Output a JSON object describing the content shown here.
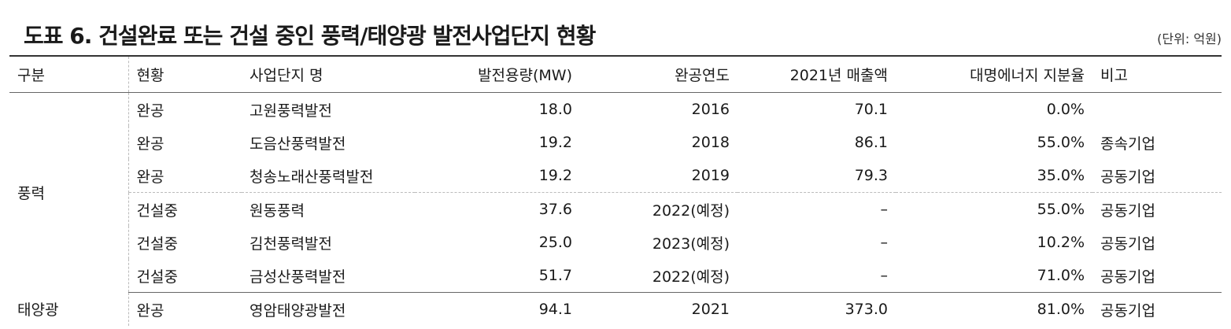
{
  "title": "도표 6. 건설완료 또는 건설 중인 풍력/태양광 발전사업단지 현황",
  "unit": "(단위: 억원)",
  "headers": {
    "category": "구분",
    "status": "현황",
    "name": "사업단지 명",
    "capacity": "발전용량(MW)",
    "year": "완공연도",
    "sales": "2021년 매출액",
    "share": "대명에너지 지분율",
    "note": "비고"
  },
  "groups": [
    {
      "category": "풍력",
      "rows": [
        {
          "status": "완공",
          "name": "고원풍력발전",
          "capacity": "18.0",
          "year": "2016",
          "sales": "70.1",
          "share": "0.0%",
          "note": ""
        },
        {
          "status": "완공",
          "name": "도음산풍력발전",
          "capacity": "19.2",
          "year": "2018",
          "sales": "86.1",
          "share": "55.0%",
          "note": "종속기업"
        },
        {
          "status": "완공",
          "name": "청송노래산풍력발전",
          "capacity": "19.2",
          "year": "2019",
          "sales": "79.3",
          "share": "35.0%",
          "note": "공동기업"
        },
        {
          "status": "건설중",
          "name": "원동풍력",
          "capacity": "37.6",
          "year": "2022(예정)",
          "sales": "–",
          "share": "55.0%",
          "note": "공동기업"
        },
        {
          "status": "건설중",
          "name": "김천풍력발전",
          "capacity": "25.0",
          "year": "2023(예정)",
          "sales": "–",
          "share": "10.2%",
          "note": "공동기업"
        },
        {
          "status": "건설중",
          "name": "금성산풍력발전",
          "capacity": "51.7",
          "year": "2022(예정)",
          "sales": "–",
          "share": "71.0%",
          "note": "공동기업"
        }
      ]
    },
    {
      "category": "태양광",
      "rows": [
        {
          "status": "완공",
          "name": "영암태양광발전",
          "capacity": "94.1",
          "year": "2021",
          "sales": "373.0",
          "share": "81.0%",
          "note": "공동기업"
        }
      ]
    }
  ]
}
